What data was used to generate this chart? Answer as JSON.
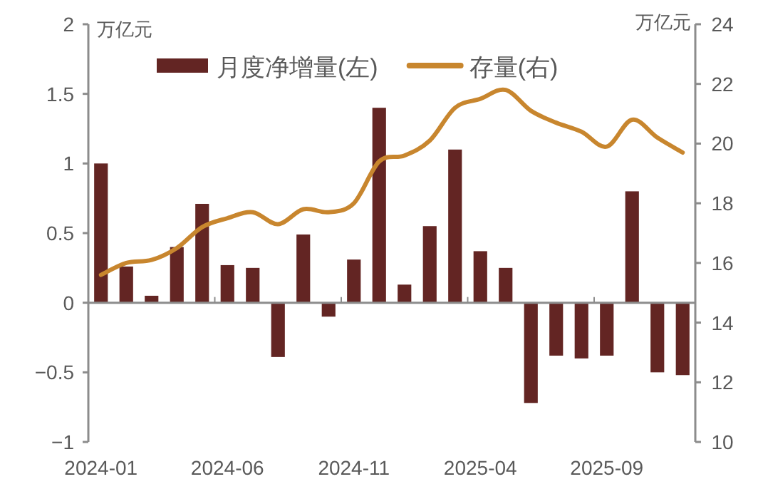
{
  "chart_data": {
    "type": "bar",
    "categories": [
      "2024-01",
      null,
      null,
      null,
      null,
      "2024-06",
      null,
      null,
      null,
      null,
      "2024-11",
      null,
      null,
      null,
      null,
      "2025-04",
      null,
      null,
      null,
      null,
      "2025-09",
      null,
      null,
      null
    ],
    "series": [
      {
        "name": "月度净增量(左)",
        "color": "#632523",
        "values": [
          1.0,
          0.26,
          0.05,
          0.4,
          0.71,
          0.27,
          0.25,
          -0.39,
          0.49,
          -0.1,
          0.31,
          1.4,
          0.13,
          0.55,
          1.1,
          0.37,
          0.25,
          -0.72,
          -0.38,
          -0.4,
          -0.38,
          0.8,
          -0.5,
          -0.52
        ]
      },
      {
        "type": "line",
        "name": "存量(右)",
        "color": "#c8862e",
        "axis": "y2",
        "values": [
          15.6,
          16.0,
          16.1,
          16.5,
          17.2,
          17.5,
          17.7,
          17.3,
          17.8,
          17.7,
          18.0,
          19.4,
          19.6,
          20.1,
          21.2,
          21.5,
          21.8,
          21.1,
          20.7,
          20.4,
          19.9,
          20.8,
          20.2,
          19.7
        ]
      }
    ],
    "ylabel": "万亿元",
    "y2label": "万亿元",
    "ylim": [
      -1,
      2
    ],
    "yticks": [
      -1,
      -0.5,
      0,
      0.5,
      1,
      1.5,
      2
    ],
    "y2lim": [
      10,
      24
    ],
    "y2ticks": [
      10,
      12,
      14,
      16,
      18,
      20,
      22,
      24
    ],
    "legend": "top"
  }
}
